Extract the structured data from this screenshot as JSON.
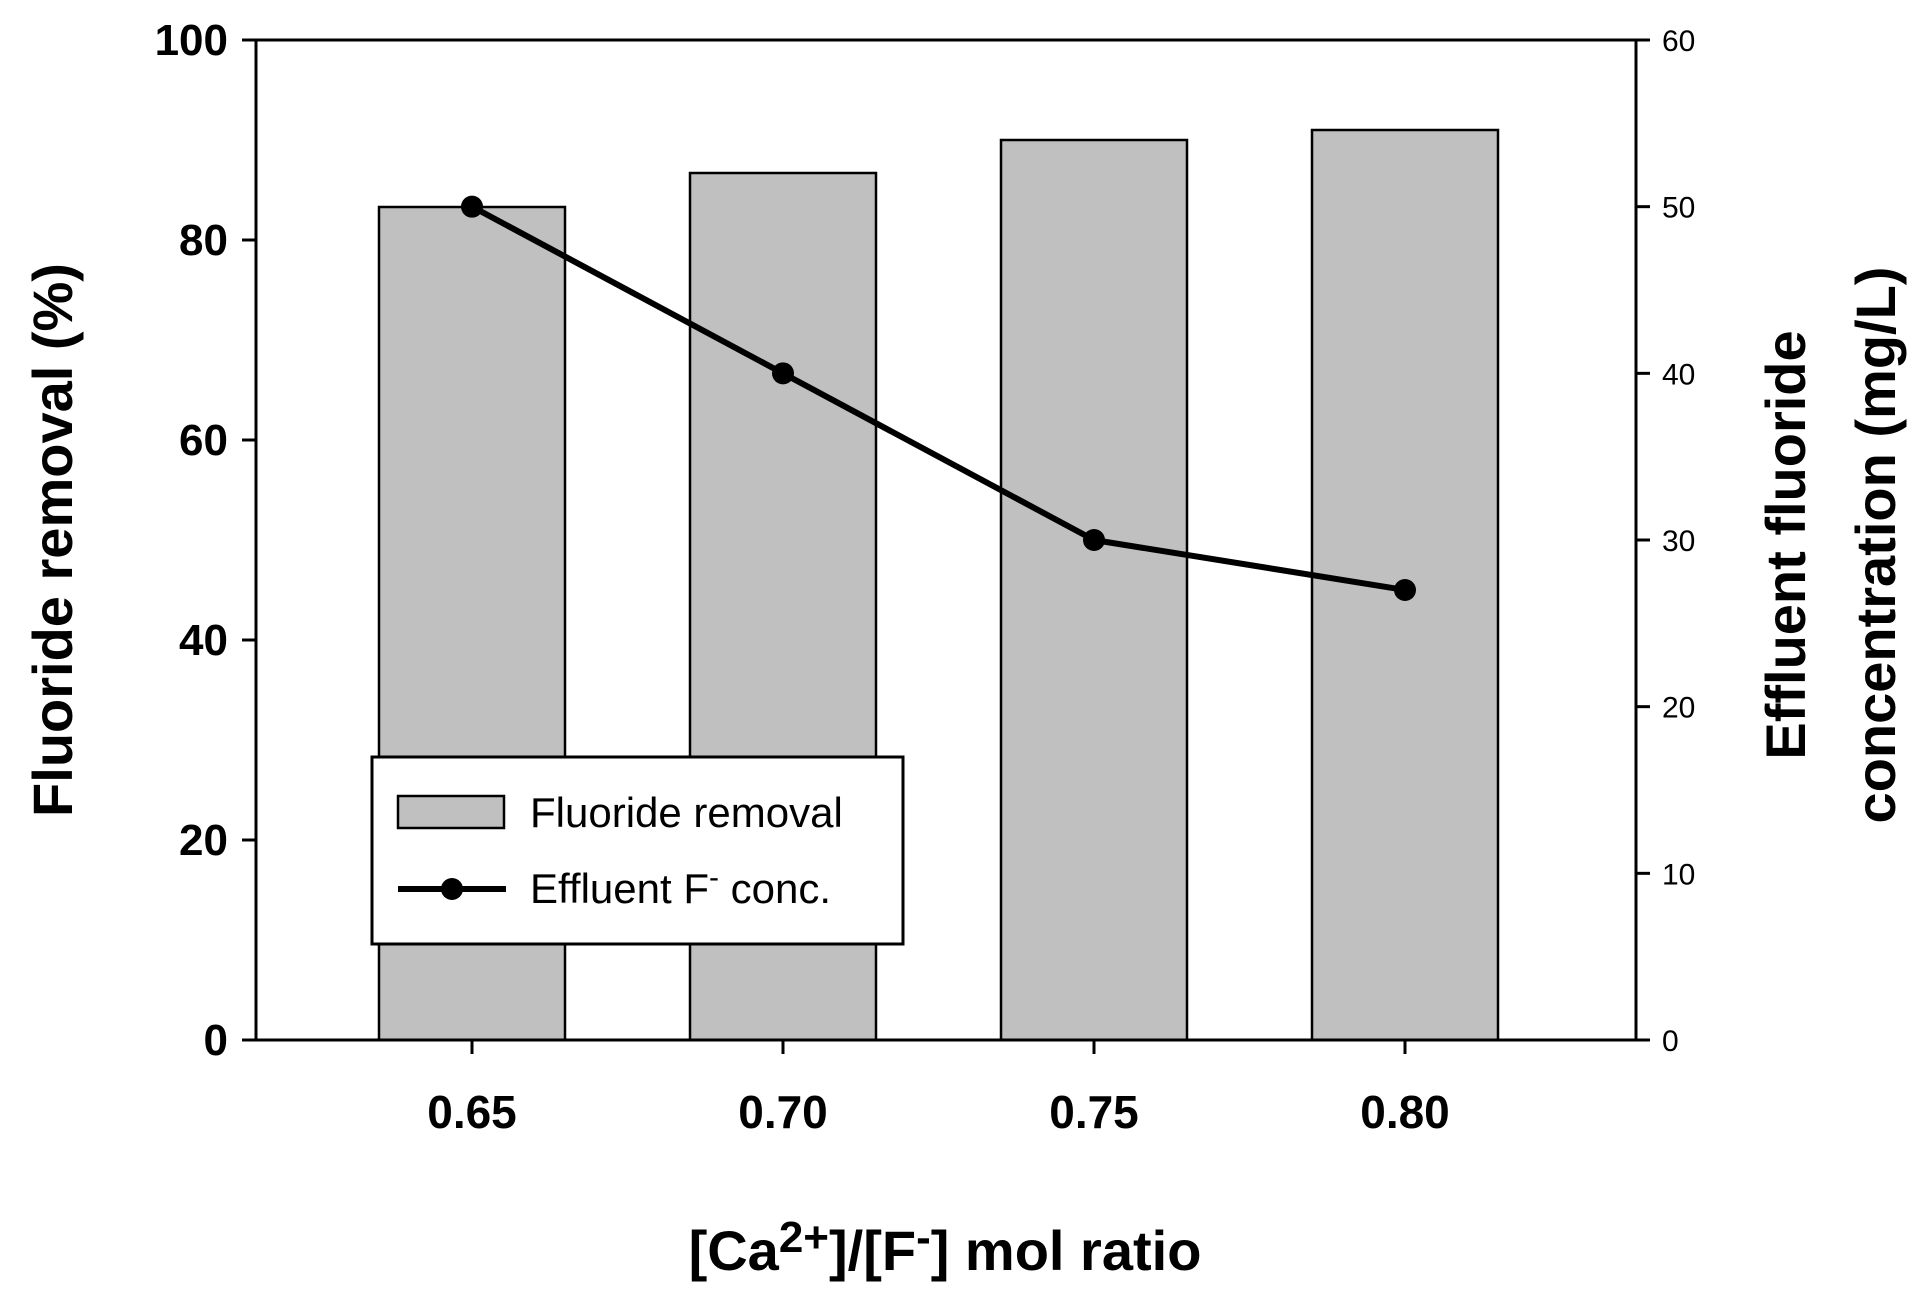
{
  "chart_data": {
    "type": "bar",
    "categories": [
      "0.65",
      "0.70",
      "0.75",
      "0.80"
    ],
    "series": [
      {
        "name": "Fluoride removal",
        "type": "bar",
        "axis": "left",
        "values": [
          83.3,
          86.7,
          90.0,
          91.0
        ],
        "color": "#c0c0c0"
      },
      {
        "name": "Effluent F⁻ conc.",
        "type": "line",
        "axis": "right",
        "values": [
          50,
          40,
          30,
          27
        ],
        "color": "#000000"
      }
    ],
    "xlabel": "[Ca2+]/[F-] mol ratio",
    "xlabel_parts": {
      "pre": "[Ca",
      "sup1": "2+",
      "mid": "]/[F",
      "sup2": "-",
      "post": "] mol ratio"
    },
    "ylabel_left": "Fluoride removal (%)",
    "ylabel_right_line1": "Effluent fluoride",
    "ylabel_right_line2": "concentration (mg/L)",
    "ylim_left": [
      0,
      100
    ],
    "yticks_left": [
      "0",
      "20",
      "40",
      "60",
      "80",
      "100"
    ],
    "ylim_right": [
      0,
      60
    ],
    "yticks_right": [
      "0",
      "10",
      "20",
      "30",
      "40",
      "50",
      "60"
    ],
    "legend": {
      "placement": "lower-left",
      "bar_label": "Fluoride removal",
      "line_label_pre": "Effluent F",
      "line_label_sup": "-",
      "line_label_post": " conc."
    },
    "grid": false
  }
}
